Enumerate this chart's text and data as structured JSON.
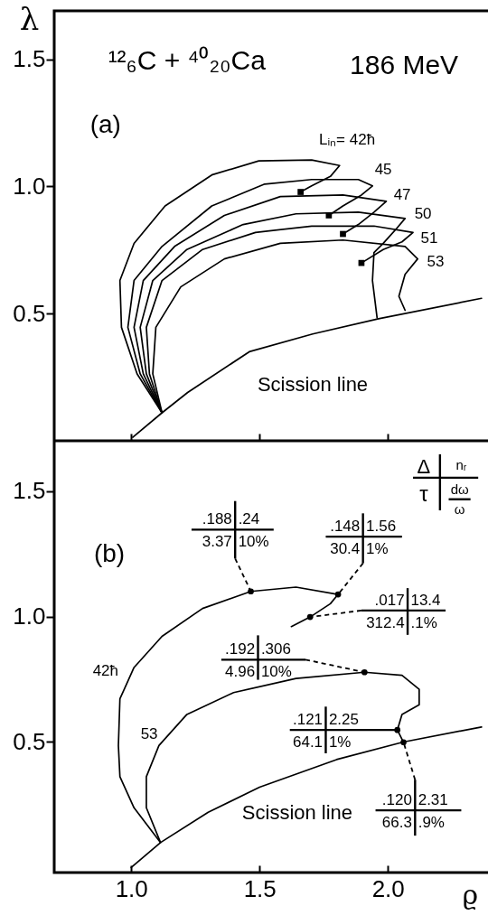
{
  "chart_data": [
    {
      "type": "line",
      "ylabel": "λ",
      "xlim": [
        0.7,
        2.4
      ],
      "ylim": [
        0,
        1.69
      ],
      "xticks": [
        {
          "value": 1,
          "label": null
        },
        {
          "value": 1.5,
          "label": null
        },
        {
          "value": 2,
          "label": null
        }
      ],
      "yticks": [
        {
          "value": 0.5,
          "label": "0.5"
        },
        {
          "value": 1,
          "label": "1.0"
        },
        {
          "value": 1.5,
          "label": "1.5"
        }
      ],
      "tick_labels": "y",
      "annotations": [
        "(a)",
        "¹²₆C + ⁴⁰₂₀Ca",
        "186 MeV",
        "Scission line"
      ],
      "series": [
        {
          "color": "#000000",
          "x": [
            1.006,
            1.12,
            1.22,
            1.46,
            1.707,
            1.964,
            2.365
          ],
          "values": [
            0.014,
            0.11,
            0.19,
            0.35,
            0.42,
            0.48,
            0.56
          ]
        },
        {
          "name": "Lᵢₙ= 42ħ",
          "color": "#000000",
          "x": [
            1.12,
            1.023,
            0.962,
            0.956,
            1.011,
            1.132,
            1.314,
            1.497,
            1.703,
            1.812,
            1.776,
            1.703,
            1.66
          ],
          "values": [
            0.11,
            0.263,
            0.446,
            0.63,
            0.776,
            0.923,
            1.045,
            1.1,
            1.104,
            1.082,
            1.039,
            1.002,
            0.978
          ]
        },
        {
          "name": "45",
          "color": "#000000",
          "x": [
            1.12,
            1.035,
            0.987,
            1.011,
            1.12,
            1.314,
            1.52,
            1.703,
            1.885,
            1.94,
            1.897,
            1.825,
            1.77
          ],
          "values": [
            0.11,
            0.263,
            0.446,
            0.63,
            0.764,
            0.923,
            1.009,
            1.027,
            1.027,
            1.002,
            0.966,
            0.923,
            0.886
          ]
        },
        {
          "name": "47",
          "color": "#000000",
          "x": [
            1.12,
            1.047,
            1.011,
            1.047,
            1.169,
            1.363,
            1.581,
            1.825,
            1.994,
            1.946,
            1.885,
            1.825
          ],
          "values": [
            0.11,
            0.263,
            0.446,
            0.63,
            0.764,
            0.886,
            0.96,
            0.966,
            0.941,
            0.899,
            0.85,
            0.813
          ]
        },
        {
          "name": "50",
          "color": "#000000",
          "x": [
            1.12,
            1.059,
            1.035,
            1.084,
            1.217,
            1.436,
            1.642,
            1.885,
            2.067,
            2.031,
            1.982,
            1.946,
            1.94,
            1.958
          ],
          "values": [
            0.11,
            0.263,
            0.446,
            0.63,
            0.752,
            0.85,
            0.892,
            0.899,
            0.874,
            0.831,
            0.776,
            0.74,
            0.63,
            0.483
          ]
        },
        {
          "name": "51",
          "color": "#000000",
          "x": [
            1.12,
            1.071,
            1.059,
            1.12,
            1.278,
            1.484,
            1.703,
            1.946,
            2.098,
            2.055,
            1.982,
            1.897
          ],
          "values": [
            0.11,
            0.263,
            0.446,
            0.63,
            0.752,
            0.819,
            0.844,
            0.844,
            0.819,
            0.782,
            0.752,
            0.699
          ]
        },
        {
          "name": "53",
          "color": "#000000",
          "x": [
            1.12,
            1.084,
            1.096,
            1.193,
            1.363,
            1.581,
            1.825,
            2.067,
            2.116,
            2.067,
            2.043,
            2.067
          ],
          "values": [
            0.11,
            0.263,
            0.446,
            0.605,
            0.715,
            0.776,
            0.789,
            0.764,
            0.715,
            0.654,
            0.568,
            0.513
          ]
        },
        {
          "type": "scatter",
          "marker": "square",
          "color": "#000000",
          "x": [
            1.66,
            1.77,
            1.825,
            1.897
          ],
          "values": [
            0.978,
            0.886,
            0.813,
            0.699
          ]
        }
      ]
    },
    {
      "type": "line",
      "xlabel": "ϱ",
      "xlim": [
        0.7,
        2.4
      ],
      "ylim": [
        -0.02,
        1.7
      ],
      "xticks": [
        {
          "value": 1,
          "label": "1.0"
        },
        {
          "value": 1.5,
          "label": "1.5"
        },
        {
          "value": 2,
          "label": "2.0"
        }
      ],
      "yticks": [
        {
          "value": 0.5,
          "label": "0.5"
        },
        {
          "value": 1,
          "label": "1.0"
        },
        {
          "value": 1.5,
          "label": "1.5"
        }
      ],
      "annotations": [
        "(b)",
        "Scission line",
        "Δ",
        "nᵣ",
        "τ",
        "dω",
        "ω",
        ".188",
        ".24",
        {
          "text": "3.37",
          "x": 1.466,
          "y": 1.1
        },
        {
          "text": "10%",
          "x": 1.466,
          "y": 1.1
        },
        ".148",
        "1.56",
        {
          "text": "30.4",
          "x": 1.806,
          "y": 1.088
        },
        {
          "text": "1%",
          "x": 1.806,
          "y": 1.088
        },
        {
          "text": ".017",
          "x": 1.697,
          "y": 0.998
        },
        "13.4",
        {
          "text": "312.4",
          "x": 1.697,
          "y": 0.998
        },
        ".1%",
        ".192",
        {
          "text": ".306",
          "x": 1.909,
          "y": 0.778
        },
        "4.96",
        {
          "text": "10%",
          "x": 1.909,
          "y": 0.778
        },
        {
          "text": ".121",
          "x": 2.037,
          "y": 0.548
        },
        {
          "text": "2.25",
          "x": 2.037,
          "y": 0.548
        },
        {
          "text": "64.1",
          "x": 2.037,
          "y": 0.548
        },
        "1%",
        {
          "text": ".120",
          "x": 2.061,
          "y": 0.499
        },
        {
          "text": "2.31",
          "x": 2.061,
          "y": 0.499
        },
        "66.3",
        ".9%"
      ],
      "series": [
        {
          "color": "#000000",
          "x": [
            1.0,
            1.115,
            1.3,
            1.5,
            1.8,
            2.06,
            2.365
          ],
          "values": [
            0.0,
            0.1,
            0.22,
            0.32,
            0.43,
            0.5,
            0.56
          ]
        },
        {
          "name": "42ħ",
          "color": "#000000",
          "x": [
            1.114,
            1.011,
            0.956,
            0.95,
            0.956,
            1.011,
            1.12,
            1.278,
            1.466,
            1.642,
            1.806,
            1.776,
            1.697,
            1.624
          ],
          "values": [
            0.1,
            0.238,
            0.362,
            0.486,
            0.672,
            0.797,
            0.921,
            1.032,
            1.1,
            1.117,
            1.088,
            1.051,
            0.998,
            0.96
          ]
        },
        {
          "name": "53",
          "color": "#000000",
          "x": [
            1.114,
            1.059,
            1.059,
            1.108,
            1.217,
            1.399,
            1.642,
            1.909,
            2.055,
            2.122,
            2.122,
            2.055,
            2.037,
            2.061
          ],
          "values": [
            0.1,
            0.238,
            0.362,
            0.486,
            0.61,
            0.697,
            0.753,
            0.778,
            0.766,
            0.71,
            0.648,
            0.61,
            0.548,
            0.499
          ]
        },
        {
          "type": "scatter",
          "marker": "circle",
          "color": "#000000",
          "x": [
            1.466,
            1.806,
            1.697,
            1.909,
            2.037,
            2.061
          ],
          "values": [
            1.1,
            1.088,
            0.998,
            0.778,
            0.548,
            0.499
          ]
        }
      ]
    }
  ]
}
